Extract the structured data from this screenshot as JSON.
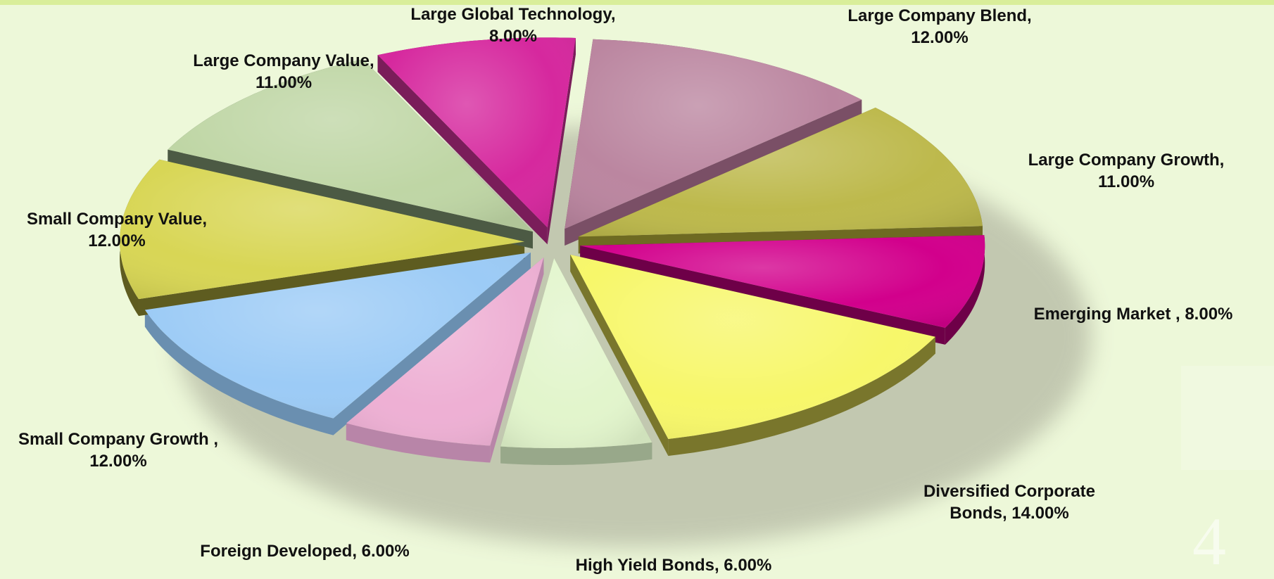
{
  "chart_data": {
    "type": "pie",
    "style": "3d exploded",
    "slices": [
      {
        "label": "Large Company Blend,\n12.00%",
        "value": 12.0,
        "color": "#bb86a0",
        "side": "#7a4f66"
      },
      {
        "label": "Large Company Growth,\n11.00%",
        "value": 11.0,
        "color": "#bdb94c",
        "side": "#6e6a22"
      },
      {
        "label": "Emerging Market , 8.00%",
        "value": 8.0,
        "color": "#d2008c",
        "side": "#6e0048"
      },
      {
        "label": "Diversified Corporate\nBonds, 14.00%",
        "value": 14.0,
        "color": "#f7f76a",
        "side": "#79762c"
      },
      {
        "label": "High Yield Bonds, 6.00%",
        "value": 6.0,
        "color": "#e2f5cc",
        "side": "#98a88a"
      },
      {
        "label": "Foreign Developed, 6.00%",
        "value": 6.0,
        "color": "#eeb0d4",
        "side": "#b885a8"
      },
      {
        "label": "Small Company Growth ,\n12.00%",
        "value": 12.0,
        "color": "#9ccbf6",
        "side": "#6a8fb0"
      },
      {
        "label": "Small Company Value,\n12.00%",
        "value": 12.0,
        "color": "#d8d655",
        "side": "#5e5c20"
      },
      {
        "label": "Large Company Value,\n11.00%",
        "value": 11.0,
        "color": "#bfd6a5",
        "side": "#4c5a44"
      },
      {
        "label": "Large Global Technology,\n8.00%",
        "value": 8.0,
        "color": "#d6289e",
        "side": "#7a1d5a"
      }
    ]
  },
  "watermark": {
    "page_number": "4"
  }
}
